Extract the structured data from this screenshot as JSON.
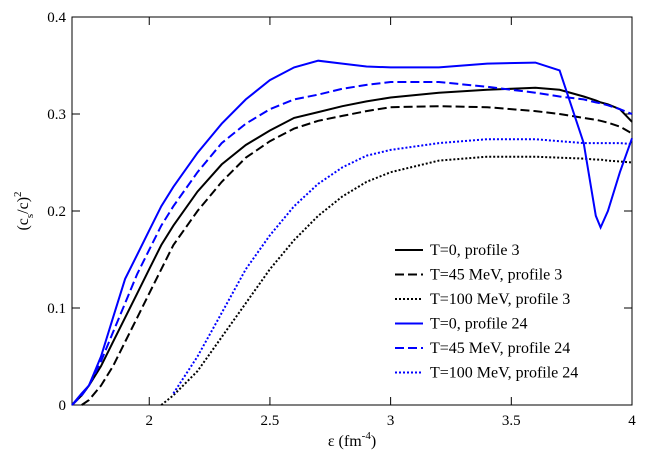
{
  "chart_data": {
    "type": "line",
    "xlabel": {
      "text": "ε (fm",
      "sup": "-4",
      "end": ")"
    },
    "ylabel": {
      "text": "(c",
      "sub": "s",
      "mid": "/c)",
      "sup": "2"
    },
    "x": [
      1.68,
      1.72,
      1.75,
      1.8,
      1.85,
      1.9,
      1.95,
      2.0,
      2.05,
      2.1,
      2.2,
      2.3,
      2.4,
      2.5,
      2.6,
      2.7,
      2.8,
      2.9,
      3.0,
      3.2,
      3.4,
      3.6,
      3.7,
      3.8,
      3.85,
      3.87,
      3.9,
      3.95,
      4.0
    ],
    "series": [
      {
        "name": "T=0, profile 3",
        "color": "#000000",
        "dash": "solid",
        "values": [
          0,
          0.01,
          0.02,
          0.04,
          0.065,
          0.09,
          0.115,
          0.14,
          0.165,
          0.185,
          0.22,
          0.248,
          0.268,
          0.283,
          0.296,
          0.302,
          0.308,
          0.313,
          0.317,
          0.322,
          0.325,
          0.327,
          0.325,
          0.318,
          0.314,
          0.312,
          0.31,
          0.305,
          0.292
        ]
      },
      {
        "name": "T=45 MeV, profile 3",
        "color": "#000000",
        "dash": "dashed",
        "values": [
          null,
          0,
          0.005,
          0.02,
          0.04,
          0.065,
          0.09,
          0.115,
          0.14,
          0.165,
          0.2,
          0.23,
          0.255,
          0.272,
          0.285,
          0.293,
          0.298,
          0.303,
          0.307,
          0.308,
          0.307,
          0.303,
          0.3,
          0.296,
          0.294,
          0.293,
          0.291,
          0.287,
          0.28
        ]
      },
      {
        "name": "T=100 MeV, profile 3",
        "color": "#000000",
        "dash": "dotted",
        "values": [
          null,
          null,
          null,
          null,
          null,
          null,
          null,
          null,
          0,
          0.01,
          0.035,
          0.07,
          0.105,
          0.14,
          0.17,
          0.195,
          0.215,
          0.23,
          0.24,
          0.252,
          0.256,
          0.256,
          0.255,
          0.254,
          0.253,
          0.253,
          0.252,
          0.251,
          0.25
        ]
      },
      {
        "name": "T=0, profile 24",
        "color": "#0000ff",
        "dash": "solid",
        "values": [
          0,
          0.012,
          0.02,
          0.05,
          0.09,
          0.13,
          0.155,
          0.18,
          0.205,
          0.225,
          0.26,
          0.29,
          0.315,
          0.335,
          0.348,
          0.355,
          0.352,
          0.349,
          0.348,
          0.348,
          0.352,
          0.353,
          0.345,
          0.27,
          0.195,
          0.183,
          0.2,
          0.24,
          0.275
        ]
      },
      {
        "name": "T=45 MeV, profile 24",
        "color": "#0000ff",
        "dash": "dashed",
        "values": [
          0,
          0.01,
          0.02,
          0.045,
          0.075,
          0.105,
          0.135,
          0.16,
          0.185,
          0.205,
          0.24,
          0.27,
          0.29,
          0.305,
          0.315,
          0.32,
          0.326,
          0.33,
          0.333,
          0.333,
          0.328,
          0.322,
          0.318,
          0.315,
          0.312,
          0.311,
          0.309,
          0.305,
          0.3
        ]
      },
      {
        "name": "T=100 MeV, profile 24",
        "color": "#0000ff",
        "dash": "dotted",
        "values": [
          null,
          null,
          null,
          null,
          null,
          null,
          null,
          null,
          null,
          0.012,
          0.05,
          0.095,
          0.14,
          0.175,
          0.205,
          0.228,
          0.245,
          0.257,
          0.263,
          0.27,
          0.274,
          0.274,
          0.272,
          0.27,
          0.27,
          0.27,
          0.27,
          0.27,
          0.269
        ]
      }
    ],
    "xlim": [
      1.68,
      4
    ],
    "ylim": [
      0,
      0.4
    ],
    "xticks": [
      2,
      2.5,
      3,
      3.5,
      4
    ],
    "yticks": [
      0,
      0.1,
      0.2,
      0.3,
      0.4
    ],
    "legend": "lower right",
    "grid": false
  }
}
